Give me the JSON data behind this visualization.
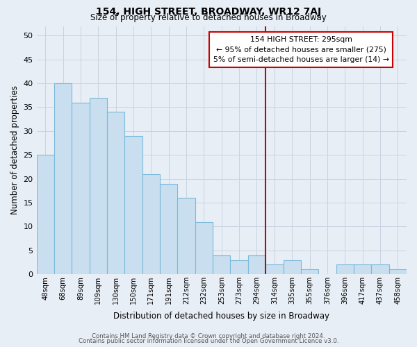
{
  "title": "154, HIGH STREET, BROADWAY, WR12 7AJ",
  "subtitle": "Size of property relative to detached houses in Broadway",
  "xlabel": "Distribution of detached houses by size in Broadway",
  "ylabel": "Number of detached properties",
  "footer_line1": "Contains HM Land Registry data © Crown copyright and database right 2024.",
  "footer_line2": "Contains public sector information licensed under the Open Government Licence v3.0.",
  "bar_labels": [
    "48sqm",
    "68sqm",
    "89sqm",
    "109sqm",
    "130sqm",
    "150sqm",
    "171sqm",
    "191sqm",
    "212sqm",
    "232sqm",
    "253sqm",
    "273sqm",
    "294sqm",
    "314sqm",
    "335sqm",
    "355sqm",
    "376sqm",
    "396sqm",
    "417sqm",
    "437sqm",
    "458sqm"
  ],
  "bar_values": [
    25,
    40,
    36,
    37,
    34,
    29,
    21,
    19,
    16,
    11,
    4,
    3,
    4,
    2,
    3,
    1,
    0,
    2,
    2,
    2,
    1
  ],
  "bar_color": "#c9dff0",
  "bar_edge_color": "#7ab9db",
  "reference_line_color": "#cc0000",
  "ylim": [
    0,
    52
  ],
  "yticks": [
    0,
    5,
    10,
    15,
    20,
    25,
    30,
    35,
    40,
    45,
    50
  ],
  "annotation_title": "154 HIGH STREET: 295sqm",
  "annotation_line2": "← 95% of detached houses are smaller (275)",
  "annotation_line3": "5% of semi-detached houses are larger (14) →",
  "grid_color": "#c8d4e0",
  "bg_color": "#e8eef5"
}
